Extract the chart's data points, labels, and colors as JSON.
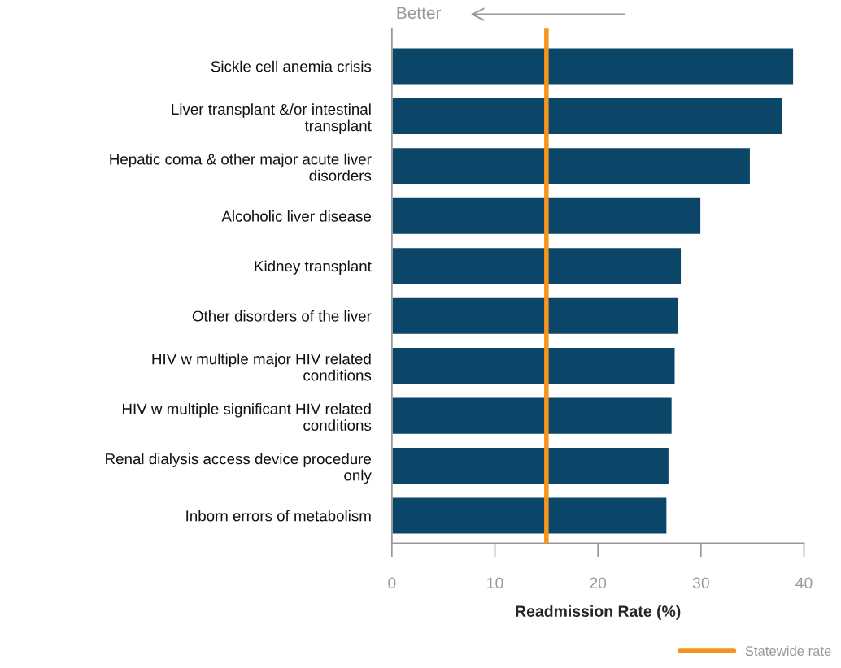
{
  "chart_data": {
    "type": "bar",
    "orientation": "horizontal",
    "xlabel": "Readmission Rate (%)",
    "categories": [
      "Sickle cell anemia crisis",
      "Liver transplant &/or intestinal\ntransplant",
      "Hepatic coma & other major acute liver\ndisorders",
      "Alcoholic liver disease",
      "Kidney transplant",
      "Other disorders of the liver",
      "HIV w multiple major HIV related\nconditions",
      "HIV w multiple significant HIV related\nconditions",
      "Renal dialysis access device procedure\nonly",
      "Inborn errors of metabolism"
    ],
    "values": [
      39.0,
      37.9,
      34.8,
      30.0,
      28.1,
      27.8,
      27.5,
      27.2,
      26.9,
      26.7
    ],
    "color": "#0b4668",
    "xlim": [
      0,
      40
    ],
    "xticks": [
      0,
      10,
      20,
      30,
      40
    ],
    "ref_lines": [
      {
        "axis": "x",
        "value": 15.0,
        "label": "Statewide rate",
        "color": "#f7941d"
      }
    ],
    "annotations": [
      "Better"
    ],
    "grid": false,
    "legend": "bottom right"
  }
}
